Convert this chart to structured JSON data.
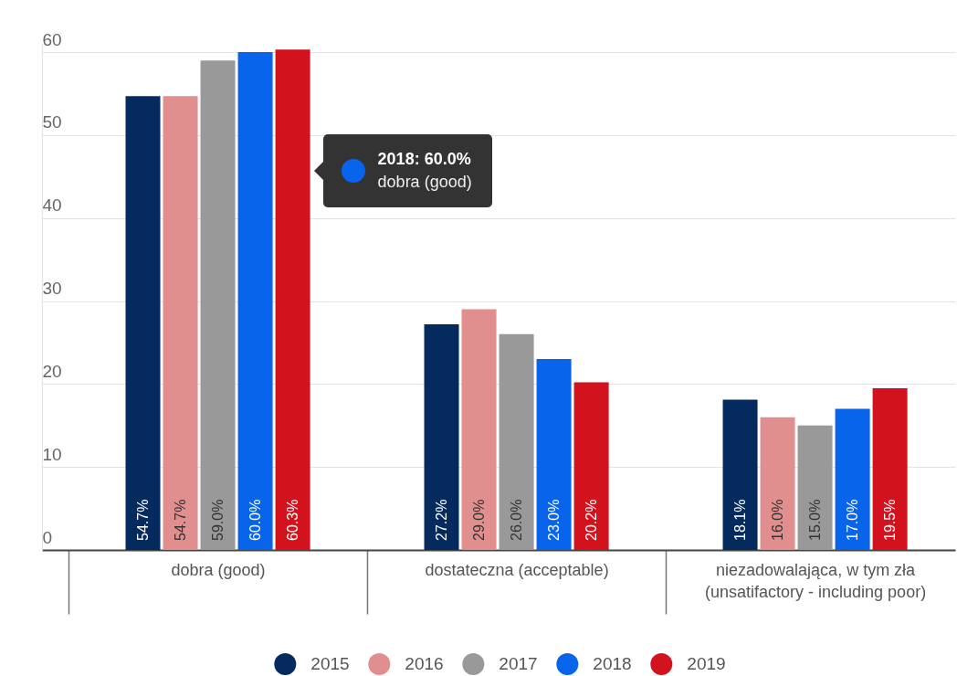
{
  "chart_data": {
    "type": "bar",
    "categories": [
      "dobra (good)",
      "dostateczna (acceptable)",
      "niezadowalająca, w tym zła (unsatifactory - including poor)"
    ],
    "series": [
      {
        "name": "2015",
        "color": "#052b5e",
        "values": [
          54.7,
          27.2,
          18.1
        ],
        "value_labels": [
          "54.7%",
          "27.2%",
          "18.1%"
        ]
      },
      {
        "name": "2016",
        "color": "#e08e8e",
        "values": [
          54.7,
          29.0,
          16.0
        ],
        "value_labels": [
          "54.7%",
          "29.0%",
          "16.0%"
        ]
      },
      {
        "name": "2017",
        "color": "#999999",
        "values": [
          59.0,
          26.0,
          15.0
        ],
        "value_labels": [
          "59.0%",
          "26.0%",
          "15.0%"
        ]
      },
      {
        "name": "2018",
        "color": "#0764eb",
        "values": [
          60.0,
          23.0,
          17.0
        ],
        "value_labels": [
          "60.0%",
          "23.0%",
          "17.0%"
        ]
      },
      {
        "name": "2019",
        "color": "#d2131d",
        "values": [
          60.3,
          20.2,
          19.5
        ],
        "value_labels": [
          "60.3%",
          "20.2%",
          "19.5%"
        ]
      }
    ],
    "ylim": [
      0,
      61
    ],
    "yticks": [
      0,
      10,
      20,
      30,
      40,
      50,
      60
    ],
    "grid": "y",
    "legend": "bottom",
    "annotations": [
      "2018: 60.0%\ndobra (good)"
    ]
  }
}
